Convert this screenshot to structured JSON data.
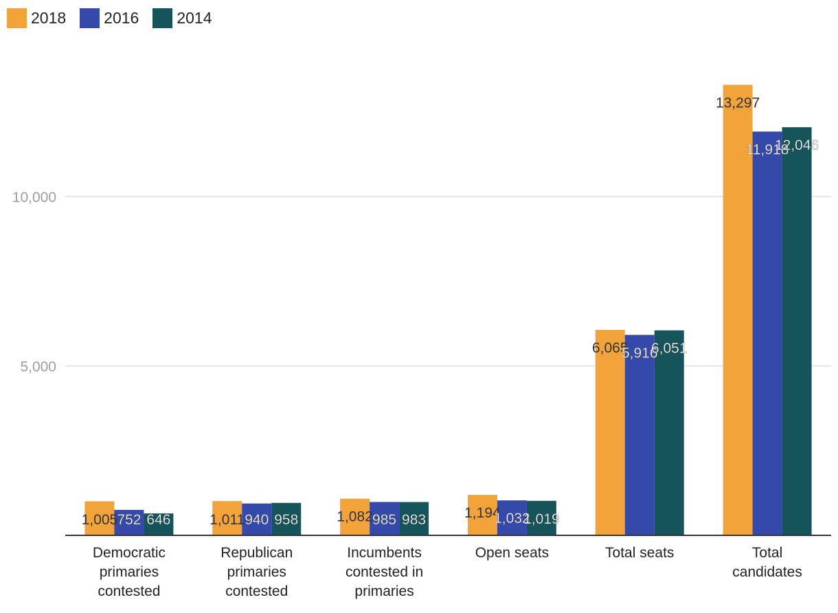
{
  "chart_data": {
    "type": "bar",
    "title": "",
    "xlabel": "",
    "ylabel": "",
    "ylim": [
      0,
      14000
    ],
    "yticks": [
      5000,
      10000
    ],
    "ytick_labels": [
      "5,000",
      "10,000"
    ],
    "grid": true,
    "legend_position": "top-left",
    "categories": [
      "Democratic primaries contested",
      "Republican primaries contested",
      "Incumbents contested in primaries",
      "Open seats",
      "Total seats",
      "Total candidates"
    ],
    "category_lines": [
      [
        "Democratic",
        "primaries",
        "contested"
      ],
      [
        "Republican",
        "primaries",
        "contested"
      ],
      [
        "Incumbents",
        "contested in",
        "primaries"
      ],
      [
        "Open seats"
      ],
      [
        "Total seats"
      ],
      [
        "Total",
        "candidates"
      ]
    ],
    "series": [
      {
        "name": "2018",
        "color": "#f2a33a",
        "values": [
          1005,
          1011,
          1082,
          1194,
          6065,
          13297
        ],
        "labels": [
          "1,005",
          "1,011",
          "1,082",
          "1,194",
          "6,065",
          "13,297"
        ]
      },
      {
        "name": "2016",
        "color": "#3549aa",
        "values": [
          752,
          940,
          985,
          1032,
          5916,
          11918
        ],
        "labels": [
          "752",
          "940",
          "985",
          "1,032",
          "5,916",
          "11,918"
        ]
      },
      {
        "name": "2014",
        "color": "#15545a",
        "values": [
          646,
          958,
          983,
          1019,
          6051,
          12046
        ],
        "labels": [
          "646",
          "958",
          "983",
          "1,019",
          "6,051",
          "12,046"
        ]
      }
    ]
  }
}
